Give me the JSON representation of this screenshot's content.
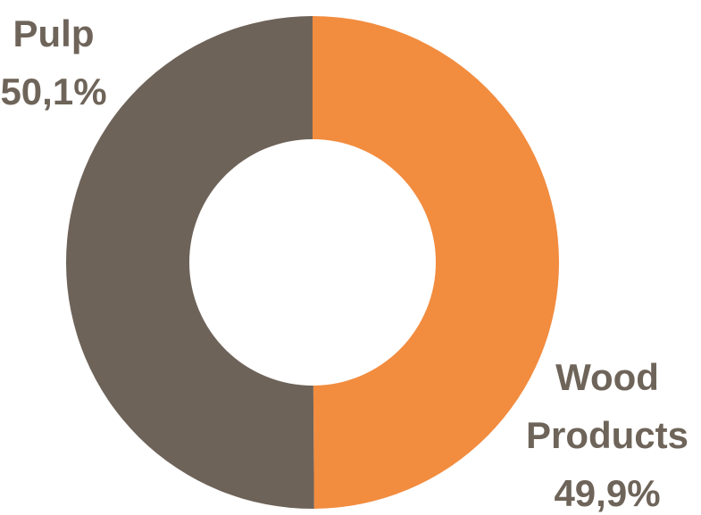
{
  "chart_data": {
    "type": "pie",
    "donut": true,
    "slices": [
      {
        "name": "Wood\nProducts",
        "value": 49.9,
        "label": "49,9%",
        "color": "#f28c3f"
      },
      {
        "name": "Pulp",
        "value": 50.1,
        "label": "50,1%",
        "color": "#6e6359"
      }
    ],
    "label_color": "#6e6459",
    "background": "#ffffff",
    "legend": "none"
  }
}
